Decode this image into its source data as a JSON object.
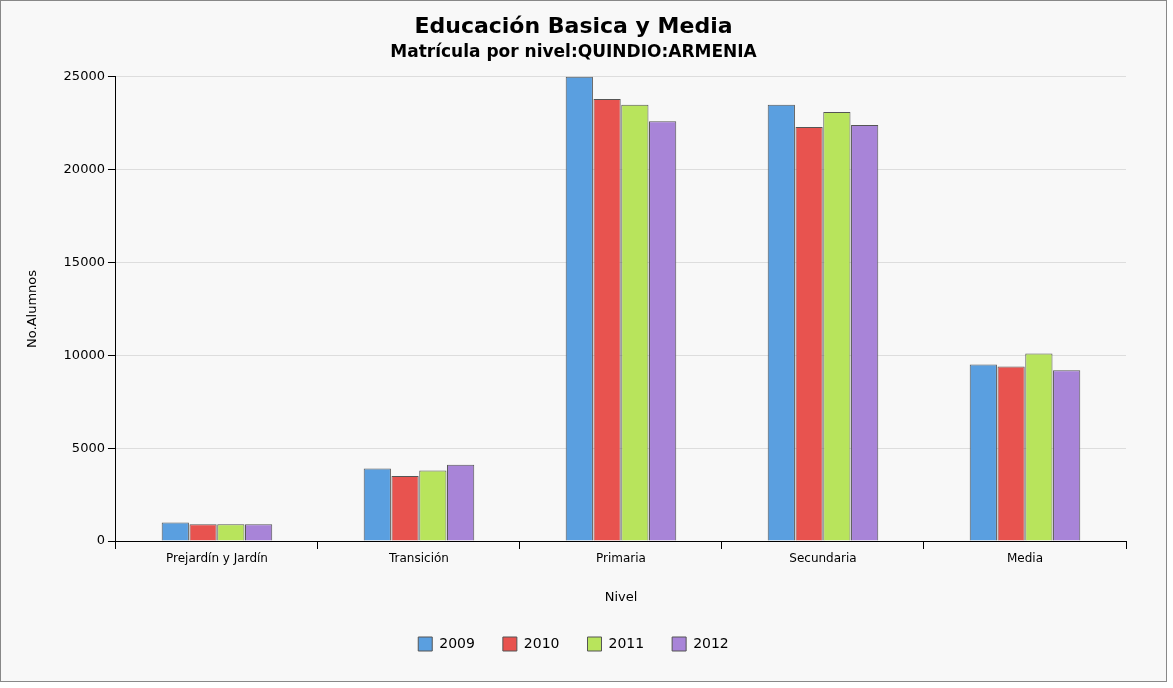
{
  "chart_data": {
    "type": "bar",
    "title": "Educación Basica y Media",
    "subtitle": "Matrícula por nivel:QUINDIO:ARMENIA",
    "xlabel": "Nivel",
    "ylabel": "No.Alumnos",
    "categories": [
      "Prejardín y Jardín",
      "Transición",
      "Primaria",
      "Secundaria",
      "Media"
    ],
    "series": [
      {
        "name": "2009",
        "color": "#5a9fe0",
        "values": [
          1000,
          3900,
          25000,
          23500,
          9500
        ]
      },
      {
        "name": "2010",
        "color": "#e8534f",
        "values": [
          900,
          3500,
          23800,
          22300,
          9400
        ]
      },
      {
        "name": "2011",
        "color": "#b8e45c",
        "values": [
          900,
          3800,
          23500,
          23100,
          10100
        ]
      },
      {
        "name": "2012",
        "color": "#a884d8",
        "values": [
          900,
          4100,
          22600,
          22400,
          9200
        ]
      }
    ],
    "ylim": [
      0,
      25000
    ],
    "yticks": [
      0,
      5000,
      10000,
      15000,
      20000,
      25000
    ],
    "grid": "y",
    "legend": "bottom"
  }
}
